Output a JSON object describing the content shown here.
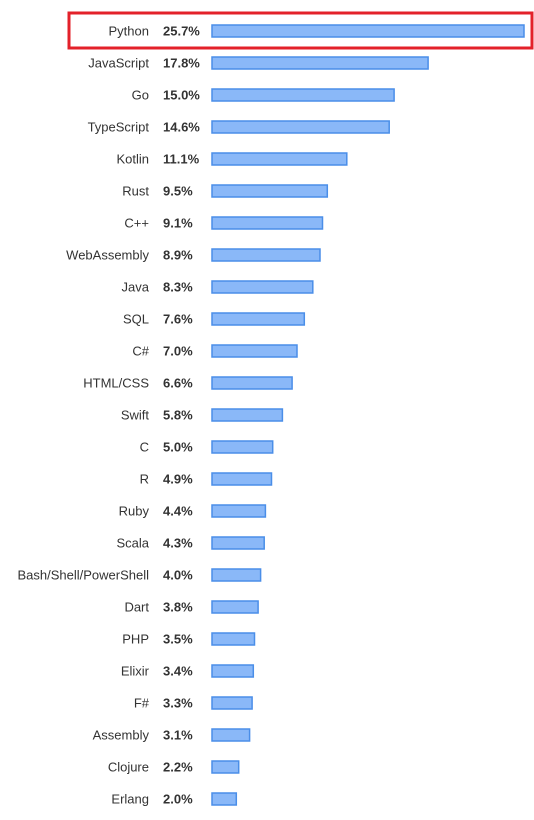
{
  "highlight_color": "#e3212a",
  "bar_fill": "#8ab8f8",
  "bar_stroke": "#4a8ee8",
  "chart_data": {
    "type": "bar",
    "orientation": "horizontal",
    "highlighted_category": "Python",
    "categories": [
      "Python",
      "JavaScript",
      "Go",
      "TypeScript",
      "Kotlin",
      "Rust",
      "C++",
      "WebAssembly",
      "Java",
      "SQL",
      "C#",
      "HTML/CSS",
      "Swift",
      "C",
      "R",
      "Ruby",
      "Scala",
      "Bash/Shell/PowerShell",
      "Dart",
      "PHP",
      "Elixir",
      "F#",
      "Assembly",
      "Clojure",
      "Erlang"
    ],
    "values": [
      25.7,
      17.8,
      15.0,
      14.6,
      11.1,
      9.5,
      9.1,
      8.9,
      8.3,
      7.6,
      7.0,
      6.6,
      5.8,
      5.0,
      4.9,
      4.4,
      4.3,
      4.0,
      3.8,
      3.5,
      3.4,
      3.3,
      3.1,
      2.2,
      2.0
    ],
    "value_labels": [
      "25.7%",
      "17.8%",
      "15.0%",
      "14.6%",
      "11.1%",
      "9.5%",
      "9.1%",
      "8.9%",
      "8.3%",
      "7.6%",
      "7.0%",
      "6.6%",
      "5.8%",
      "5.0%",
      "4.9%",
      "4.4%",
      "4.3%",
      "4.0%",
      "3.8%",
      "3.5%",
      "3.4%",
      "3.3%",
      "3.1%",
      "2.2%",
      "2.0%"
    ],
    "xlim": [
      0,
      25.7
    ],
    "grid": false,
    "legend": "none",
    "title": "",
    "xlabel": "",
    "ylabel": ""
  }
}
